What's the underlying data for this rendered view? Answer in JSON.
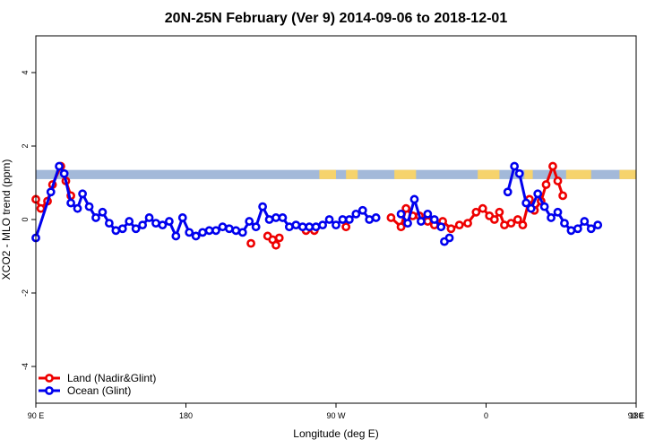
{
  "chart_data": {
    "type": "line",
    "title": "20N-25N February (Ver 9)   2014-09-06 to 2018-12-01",
    "xlabel": "Longitude (deg E)",
    "ylabel": "XCO2 - MLO trend (ppm)",
    "xlim": [
      90,
      450
    ],
    "ylim": [
      -5,
      5
    ],
    "x_ticks": [
      {
        "value": 90,
        "label": "90 E"
      },
      {
        "value": 180,
        "label": "180"
      },
      {
        "value": 270,
        "label": "90 W"
      },
      {
        "value": 360,
        "label": "0"
      },
      {
        "value": 450,
        "label": "90 E"
      },
      {
        "value": 540,
        "label": "180"
      }
    ],
    "y_ticks": [
      {
        "value": -4,
        "label": "-4"
      },
      {
        "value": -2,
        "label": "-2"
      },
      {
        "value": 0,
        "label": "0"
      },
      {
        "value": 2,
        "label": "2"
      },
      {
        "value": 4,
        "label": "4"
      }
    ],
    "band": {
      "y_low": 1.1,
      "y_high": 1.35,
      "ocean_color": "#a3b9d9",
      "land_color": "#f6d36c",
      "land_ranges": [
        [
          260,
          270
        ],
        [
          276,
          283
        ],
        [
          305,
          318
        ],
        [
          355,
          368
        ],
        [
          383,
          388
        ],
        [
          408,
          423
        ],
        [
          440,
          450
        ]
      ]
    },
    "legend_position": "bottom-left",
    "series": [
      {
        "name": "Land (Nadir&Glint)",
        "color": "#ee0000",
        "segments": [
          [
            [
              90,
              0.55
            ],
            [
              93,
              0.3
            ],
            [
              97,
              0.5
            ],
            [
              100,
              0.95
            ],
            [
              105,
              1.45
            ],
            [
              108,
              1.05
            ],
            [
              111,
              0.65
            ]
          ],
          [
            [
              229,
              -0.45
            ],
            [
              232,
              -0.55
            ],
            [
              234,
              -0.7
            ],
            [
              236,
              -0.5
            ]
          ],
          [
            [
              219,
              -0.65
            ]
          ],
          [
            [
              252,
              -0.3
            ],
            [
              257,
              -0.3
            ]
          ],
          [
            [
              276,
              -0.2
            ]
          ],
          [
            [
              303,
              0.05
            ],
            [
              309,
              -0.2
            ],
            [
              312,
              0.3
            ],
            [
              316,
              0.1
            ],
            [
              320,
              0.1
            ],
            [
              325,
              -0.05
            ],
            [
              329,
              -0.15
            ],
            [
              334,
              -0.05
            ],
            [
              339,
              -0.25
            ],
            [
              344,
              -0.15
            ],
            [
              349,
              -0.1
            ],
            [
              354,
              0.2
            ],
            [
              358,
              0.3
            ],
            [
              362,
              0.1
            ],
            [
              365,
              0.0
            ],
            [
              368,
              0.2
            ],
            [
              371,
              -0.15
            ],
            [
              375,
              -0.1
            ],
            [
              379,
              0.0
            ],
            [
              382,
              -0.15
            ],
            [
              386,
              0.55
            ],
            [
              389,
              0.25
            ],
            [
              393,
              0.5
            ],
            [
              396,
              0.95
            ],
            [
              400,
              1.45
            ],
            [
              403,
              1.05
            ],
            [
              406,
              0.65
            ]
          ]
        ]
      },
      {
        "name": "Ocean (Glint)",
        "color": "#0000ee",
        "segments": [
          [
            [
              90,
              -0.5
            ],
            [
              99,
              0.75
            ],
            [
              104,
              1.45
            ],
            [
              107,
              1.25
            ],
            [
              111,
              0.45
            ],
            [
              115,
              0.3
            ],
            [
              118,
              0.7
            ],
            [
              122,
              0.35
            ],
            [
              126,
              0.05
            ],
            [
              130,
              0.2
            ],
            [
              134,
              -0.1
            ],
            [
              138,
              -0.3
            ],
            [
              142,
              -0.25
            ],
            [
              146,
              -0.05
            ],
            [
              150,
              -0.25
            ],
            [
              154,
              -0.15
            ],
            [
              158,
              0.05
            ],
            [
              162,
              -0.1
            ],
            [
              166,
              -0.15
            ],
            [
              170,
              -0.05
            ],
            [
              174,
              -0.45
            ],
            [
              178,
              0.05
            ],
            [
              182,
              -0.35
            ],
            [
              186,
              -0.45
            ],
            [
              190,
              -0.35
            ],
            [
              194,
              -0.3
            ],
            [
              198,
              -0.3
            ],
            [
              202,
              -0.2
            ],
            [
              206,
              -0.25
            ],
            [
              210,
              -0.3
            ],
            [
              214,
              -0.35
            ],
            [
              218,
              -0.05
            ],
            [
              222,
              -0.2
            ],
            [
              226,
              0.35
            ],
            [
              230,
              0.0
            ],
            [
              234,
              0.05
            ],
            [
              238,
              0.05
            ],
            [
              242,
              -0.2
            ],
            [
              246,
              -0.15
            ],
            [
              250,
              -0.2
            ],
            [
              254,
              -0.2
            ],
            [
              258,
              -0.2
            ],
            [
              262,
              -0.15
            ],
            [
              266,
              0.0
            ],
            [
              270,
              -0.15
            ],
            [
              274,
              0.0
            ],
            [
              278,
              0.0
            ],
            [
              282,
              0.15
            ],
            [
              286,
              0.25
            ],
            [
              290,
              0.0
            ],
            [
              294,
              0.05
            ]
          ],
          [
            [
              309,
              0.15
            ],
            [
              313,
              -0.1
            ],
            [
              317,
              0.55
            ],
            [
              321,
              -0.05
            ],
            [
              325,
              0.15
            ],
            [
              329,
              0.0
            ],
            [
              333,
              -0.2
            ]
          ],
          [
            [
              335,
              -0.6
            ],
            [
              338,
              -0.5
            ]
          ],
          [
            [
              373,
              0.75
            ],
            [
              377,
              1.45
            ],
            [
              380,
              1.25
            ],
            [
              384,
              0.45
            ],
            [
              387,
              0.3
            ],
            [
              391,
              0.7
            ],
            [
              395,
              0.35
            ],
            [
              399,
              0.05
            ],
            [
              403,
              0.2
            ],
            [
              407,
              -0.1
            ],
            [
              411,
              -0.3
            ],
            [
              415,
              -0.25
            ],
            [
              419,
              -0.05
            ],
            [
              423,
              -0.25
            ],
            [
              427,
              -0.15
            ]
          ]
        ]
      }
    ]
  }
}
